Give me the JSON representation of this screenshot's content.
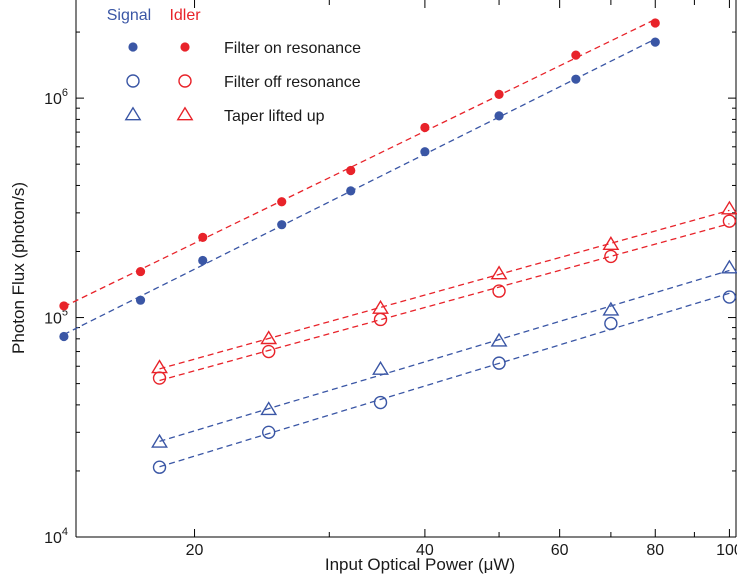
{
  "chart_data": {
    "type": "scatter",
    "title": "",
    "xlabel": "Input Optical Power (μW)",
    "ylabel": "Photon Flux (photon/s)",
    "xscale": "log",
    "yscale": "log",
    "xlim": [
      14,
      102
    ],
    "ylim": [
      10000,
      2800000
    ],
    "x_ticks": [
      20,
      40,
      60,
      80,
      100
    ],
    "x_tick_labels": [
      "20",
      "40",
      "60",
      "80",
      "100"
    ],
    "y_ticks": [
      10000,
      100000,
      1000000
    ],
    "y_tick_labels": [
      {
        "base": "10",
        "exp": "4"
      },
      {
        "base": "10",
        "exp": "5"
      },
      {
        "base": "10",
        "exp": "6"
      }
    ],
    "grid": false,
    "legend_position": "top-left",
    "legend": {
      "columns": [
        {
          "label": "Signal",
          "color": "#3a56a5"
        },
        {
          "label": "Idler",
          "color": "#e8232a"
        }
      ],
      "rows": [
        {
          "marker": "filled-circle",
          "label": "Filter on resonance"
        },
        {
          "marker": "open-circle",
          "label": "Filter off resonance"
        },
        {
          "marker": "open-triangle",
          "label": "Taper lifted up"
        }
      ]
    },
    "series": [
      {
        "group": "Signal",
        "condition": "Filter on resonance",
        "marker": "filled-circle",
        "color": "#3a56a5",
        "x": [
          13.5,
          17,
          20.5,
          26,
          32,
          40,
          50,
          63,
          80
        ],
        "y": [
          82000,
          120000,
          182000,
          265000,
          378000,
          570000,
          830000,
          1220000,
          1800000
        ]
      },
      {
        "group": "Idler",
        "condition": "Filter on resonance",
        "marker": "filled-circle",
        "color": "#e8232a",
        "x": [
          13.5,
          17,
          20.5,
          26,
          32,
          40,
          50,
          63,
          80
        ],
        "y": [
          113000,
          162000,
          232000,
          337000,
          468000,
          735000,
          1040000,
          1570000,
          2200000
        ]
      },
      {
        "group": "Signal",
        "condition": "Filter off resonance",
        "marker": "open-circle",
        "color": "#3a56a5",
        "x": [
          18,
          25,
          35,
          50,
          70,
          100
        ],
        "y": [
          20800,
          30000,
          41000,
          62000,
          94000,
          124000
        ]
      },
      {
        "group": "Idler",
        "condition": "Filter off resonance",
        "marker": "open-circle",
        "color": "#e8232a",
        "x": [
          18,
          25,
          35,
          50,
          70,
          100
        ],
        "y": [
          53000,
          70000,
          98000,
          132000,
          190000,
          275000
        ]
      },
      {
        "group": "Signal",
        "condition": "Taper lifted up",
        "marker": "open-triangle",
        "color": "#3a56a5",
        "x": [
          18,
          25,
          35,
          50,
          70,
          100
        ],
        "y": [
          27000,
          38000,
          58000,
          78000,
          108000,
          168000
        ]
      },
      {
        "group": "Idler",
        "condition": "Taper lifted up",
        "marker": "open-triangle",
        "color": "#e8232a",
        "x": [
          18,
          25,
          35,
          50,
          70,
          100
        ],
        "y": [
          59000,
          80000,
          110000,
          158000,
          215000,
          312000
        ]
      }
    ]
  }
}
